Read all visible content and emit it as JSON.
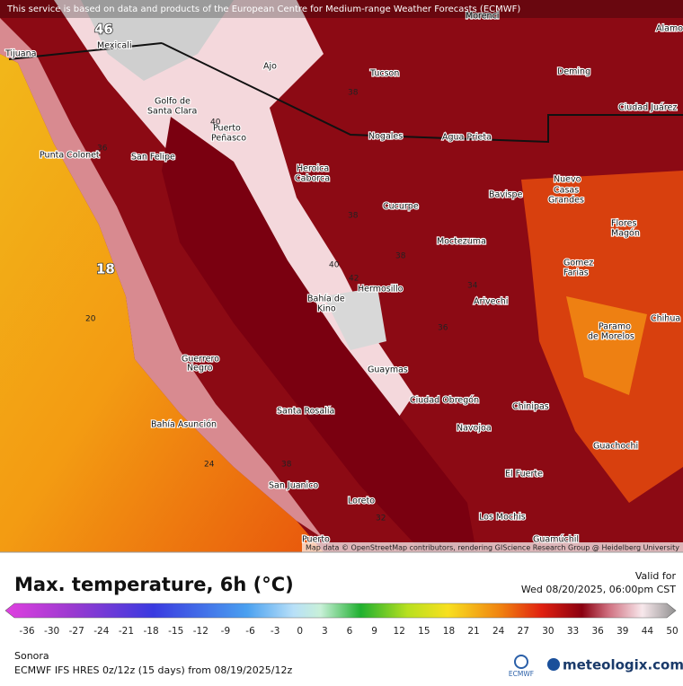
{
  "map": {
    "disclaimer": "This service is based on data and products of the European Centre for Medium-range Weather Forecasts (ECMWF)",
    "attribution": "Map data © OpenStreetMap contributors, rendering GIScience Research Group @ Heidelberg University",
    "cities": [
      "Tijuana",
      "Mexicali",
      "Morenci",
      "Alamo",
      "Ajo",
      "Tucson",
      "Deming",
      "Ciudad Juárez",
      "Golfo de",
      "Santa Clara",
      "Puerto",
      "Peñasco",
      "Nogales",
      "Agua Prieta",
      "Punta Colonet",
      "San Felipe",
      "Heroica",
      "Caborca",
      "Cucurpe",
      "Bavispe",
      "Nuevo",
      "Casas",
      "Grandes",
      "Flores",
      "Magón",
      "Moctezuma",
      "Gomez",
      "Farias",
      "Bahía de",
      "Kino",
      "Hermosillo",
      "Arivechi",
      "Chihua",
      "Paramo",
      "de Morelos",
      "Guerrero",
      "Negro",
      "Guaymas",
      "Ciudad Obregón",
      "Chinipas",
      "Bahía Asunción",
      "Santa Rosalía",
      "Navojoa",
      "Guachochi",
      "El Fuerte",
      "San Juanico",
      "Loreto",
      "Los Mochis",
      "Guamúchil",
      "Puerto"
    ],
    "values": [
      46,
      18,
      20,
      24,
      38,
      36,
      40,
      38,
      40,
      42,
      38,
      36,
      34,
      38,
      32
    ]
  },
  "panel": {
    "title": "Max. temperature, 6h (°C)",
    "valid_label": "Valid for",
    "valid_time": "Wed 08/20/2025, 06:00pm CST",
    "colorbar_ticks": [
      -36,
      -30,
      -27,
      -24,
      -21,
      -18,
      -15,
      -12,
      -9,
      -6,
      -3,
      0,
      3,
      6,
      9,
      12,
      15,
      18,
      21,
      24,
      27,
      30,
      33,
      36,
      39,
      44,
      50
    ],
    "region": "Sonora",
    "model_info": "ECMWF IFS HRES 0z/12z (15 days) from 08/19/2025/12z",
    "ecmwf_logo": "ECMWF",
    "brand": "meteologix.com"
  }
}
